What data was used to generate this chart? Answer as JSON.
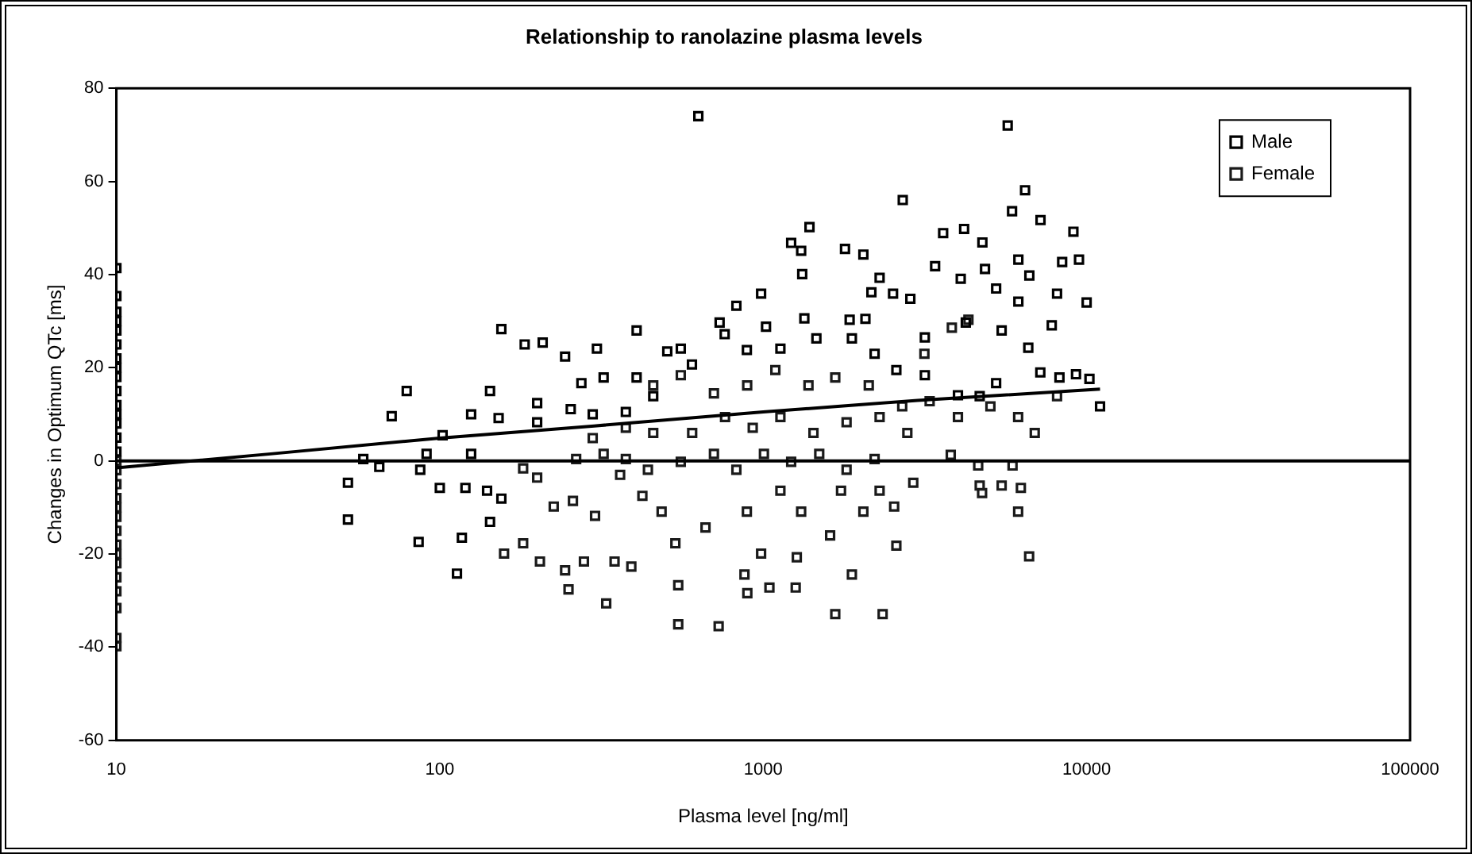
{
  "chart_data": {
    "type": "scatter",
    "title": "Relationship to ranolazine plasma levels",
    "xlabel": "Plasma level [ng/ml]",
    "ylabel": "Changes in Optimum QTc [ms]",
    "log": "x",
    "xlim": [
      10,
      100000
    ],
    "xticks": [
      10,
      100,
      1000,
      10000,
      100000
    ],
    "ylim": [
      -60,
      80
    ],
    "yticks": [
      -60,
      -40,
      -20,
      0,
      20,
      40,
      60,
      80
    ],
    "grid": false,
    "legend": "top right",
    "marker": "square",
    "ref_lines": [
      {
        "axis": "y",
        "value": 0,
        "color": "#000000"
      }
    ],
    "series": [
      {
        "name": "Male",
        "color": "#000000",
        "x": [
          10,
          10,
          10,
          10,
          10,
          10,
          10,
          10,
          10,
          10,
          10,
          10,
          10,
          10,
          10,
          630,
          5700,
          2700,
          6450,
          5880,
          7200,
          3600,
          4180,
          9100,
          1390,
          1220,
          1310,
          1790,
          2040,
          1320,
          3400,
          4080,
          4850,
          4760,
          6150,
          6650,
          8400,
          9470,
          2290,
          2160,
          2520,
          2850,
          5250,
          6150,
          8100,
          10000,
          7800,
          985,
          826,
          733,
          760,
          1020,
          1340,
          1850,
          2070,
          3160,
          4230,
          5460,
          6600,
          10200,
          11000,
          9270,
          8240,
          7190,
          5250,
          4670,
          4000,
          3160,
          2580,
          2210,
          1880,
          1460,
          1130,
          890,
          556,
          505,
          602,
          406,
          306,
          244,
          208,
          183,
          155,
          274,
          321,
          406,
          457,
          376,
          297,
          254,
          200,
          143,
          79,
          71,
          125,
          152,
          200,
          102,
          58,
          65,
          91,
          125,
          52,
          52,
          87,
          100,
          120,
          140,
          155,
          86,
          117,
          113,
          143
        ],
        "values": [
          41.4,
          35.4,
          32,
          30,
          28,
          25,
          22,
          20,
          18,
          15,
          12,
          10,
          8,
          5,
          2,
          74,
          72,
          56,
          58.1,
          53.6,
          51.7,
          48.9,
          49.8,
          49.2,
          50.2,
          46.8,
          45.1,
          45.5,
          44.3,
          40.1,
          41.8,
          39.1,
          41.2,
          46.9,
          43.2,
          39.8,
          42.7,
          43.2,
          39.3,
          36.2,
          35.9,
          34.8,
          37,
          34.2,
          35.9,
          34,
          29.1,
          35.9,
          33.3,
          29.7,
          27.2,
          28.8,
          30.6,
          30.3,
          30.5,
          26.5,
          29.7,
          28,
          24.3,
          17.6,
          11.7,
          18.6,
          17.9,
          19,
          16.7,
          13.9,
          14.1,
          18.4,
          19.5,
          23,
          26.3,
          26.3,
          24.1,
          23.8,
          24.1,
          23.5,
          20.7,
          28,
          24.1,
          22.4,
          25.4,
          25,
          28.3,
          16.7,
          17.9,
          17.9,
          13.9,
          10.5,
          10,
          11.1,
          12.4,
          15,
          15,
          9.6,
          10,
          9.2,
          8.3,
          5.5,
          0.4,
          -1.3,
          1.5,
          1.5,
          -4.7,
          -12.6,
          -1.9,
          -5.8,
          -5.8,
          -6.4,
          -8.1,
          -17.4,
          -16.5,
          -24.2,
          -13.1
        ]
      },
      {
        "name": "Female",
        "color": "#1a1a1a",
        "x": [
          10,
          10,
          10,
          10,
          10,
          10,
          10,
          10,
          10,
          10,
          10,
          10,
          10,
          10,
          10,
          158,
          181,
          204,
          244,
          250,
          327,
          279,
          347,
          391,
          546,
          546,
          728,
          875,
          893,
          1045,
          1260,
          985,
          1270,
          1670,
          2340,
          1880,
          1610,
          2580,
          6640,
          6140,
          6260,
          5460,
          4750,
          4670,
          5900,
          4620,
          3800,
          2910,
          2540,
          2290,
          2040,
          1740,
          1310,
          1130,
          890,
          663,
          535,
          485,
          423,
          361,
          302,
          258,
          225,
          200,
          181,
          264,
          321,
          376,
          440,
          556,
          704,
          826,
          1005,
          1220,
          1490,
          1810,
          2210,
          297,
          376,
          457,
          603,
          762,
          928,
          1130,
          1430,
          1810,
          2290,
          2790,
          3270,
          4000,
          5040,
          6140,
          6910,
          8100,
          457,
          556,
          704,
          892,
          1090,
          1380,
          1670,
          2120,
          2690,
          3150,
          3830,
          4310
        ],
        "values": [
          0,
          -2,
          -5,
          -8,
          -10,
          -12,
          -15,
          -18,
          -20,
          -22,
          -25,
          -28,
          -31.6,
          -38,
          -39.8,
          -19.9,
          -17.7,
          -21.6,
          -23.5,
          -27.6,
          -30.6,
          -21.6,
          -21.6,
          -22.7,
          -26.7,
          -35.1,
          -35.5,
          -24.4,
          -28.4,
          -27.2,
          -27.2,
          -19.9,
          -20.7,
          -32.9,
          -32.9,
          -24.4,
          -16,
          -18.2,
          -20.5,
          -10.9,
          -5.8,
          -5.3,
          -6.9,
          -5.3,
          -1,
          -1,
          1.3,
          -4.7,
          -9.8,
          -6.4,
          -10.9,
          -6.4,
          -10.9,
          -6.4,
          -10.9,
          -14.3,
          -17.7,
          -10.9,
          -7.5,
          -3,
          -11.8,
          -8.6,
          -9.8,
          -3.6,
          -1.6,
          0.4,
          1.5,
          0.4,
          -1.9,
          -0.2,
          1.5,
          -1.9,
          1.5,
          -0.2,
          1.5,
          -1.9,
          0.4,
          4.9,
          7.1,
          6,
          6,
          9.4,
          7.1,
          9.4,
          6,
          8.3,
          9.4,
          6,
          12.8,
          9.4,
          11.7,
          9.4,
          6,
          13.9,
          16.2,
          18.4,
          14.5,
          16.2,
          19.5,
          16.2,
          17.9,
          16.2,
          11.7,
          23,
          28.6,
          30.3
        ]
      },
      {
        "type": "line",
        "color": "#000000",
        "marker": "none",
        "x": [
          10,
          30,
          100,
          300,
          1000,
          3000,
          11000
        ],
        "values": [
          -1.5,
          1.5,
          4.9,
          7.5,
          10.5,
          13,
          15.4
        ]
      }
    ]
  }
}
